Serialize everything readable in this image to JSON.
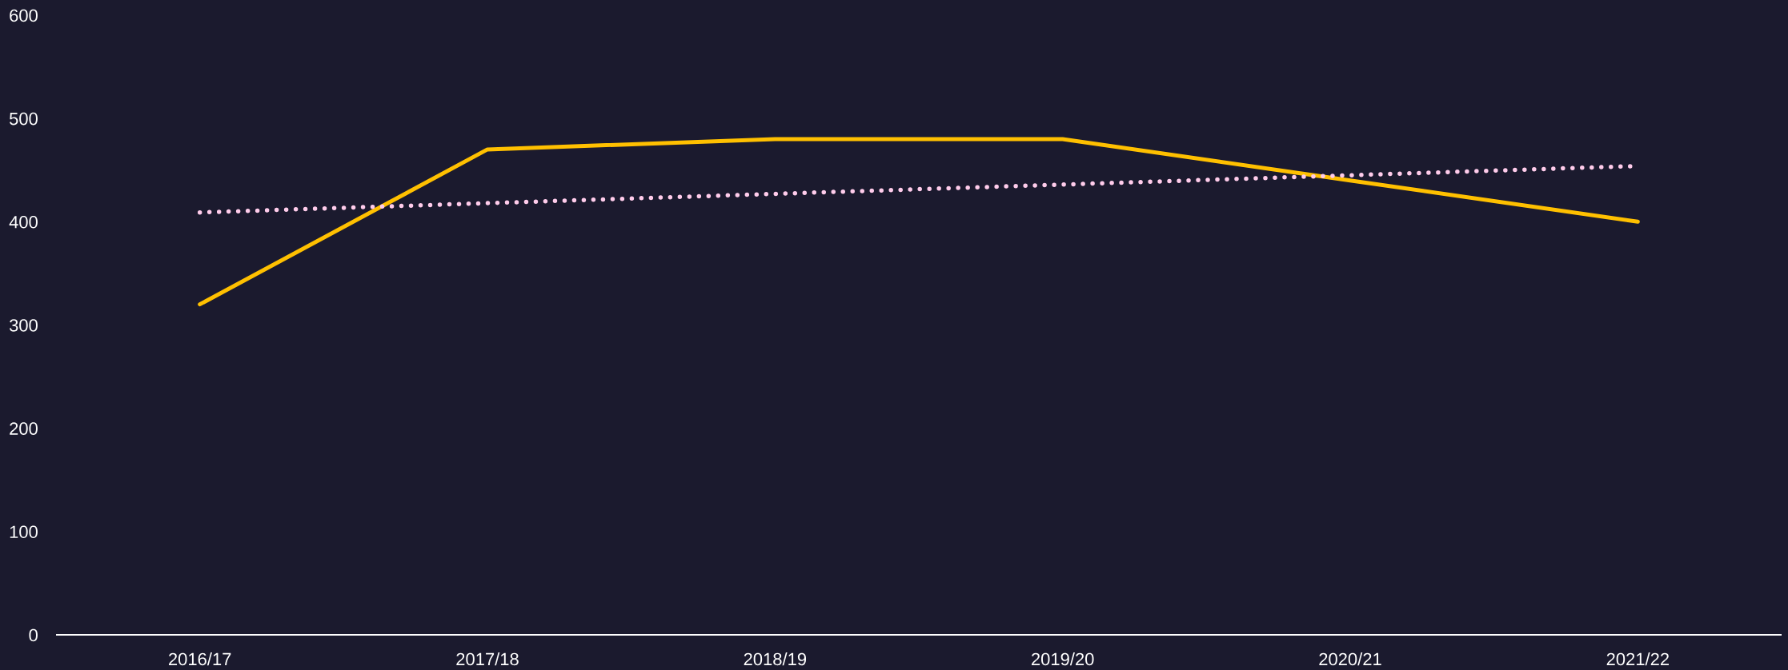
{
  "chart_data": {
    "type": "line",
    "categories": [
      "2016/17",
      "2017/18",
      "2018/19",
      "2019/20",
      "2020/21",
      "2021/22"
    ],
    "series": [
      {
        "color": "#ffc000",
        "values": [
          320,
          470,
          480,
          480,
          440,
          400
        ],
        "line_style": "solid"
      },
      {
        "color": "#ffcceb",
        "values": [
          409,
          418,
          427,
          436,
          445,
          454
        ],
        "line_style": "dotted"
      }
    ],
    "ylim": [
      0,
      600
    ],
    "yticks": [
      0,
      100,
      200,
      300,
      400,
      500,
      600
    ],
    "marker": "none"
  }
}
